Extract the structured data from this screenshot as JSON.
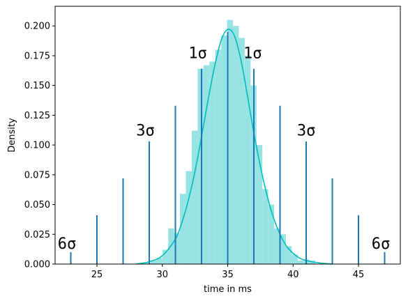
{
  "chart_data": {
    "type": "bar",
    "xlabel": "time in ms",
    "ylabel": "Density",
    "xlim": [
      21.8,
      48.2
    ],
    "ylim": [
      0,
      0.2165
    ],
    "x_ticks": [
      25,
      30,
      35,
      40,
      45
    ],
    "x_tick_labels": [
      "25",
      "30",
      "35",
      "40",
      "45"
    ],
    "y_ticks": [
      0.0,
      0.025,
      0.05,
      0.075,
      0.1,
      0.125,
      0.15,
      0.175,
      0.2
    ],
    "y_tick_labels": [
      "0.000",
      "0.025",
      "0.050",
      "0.075",
      "0.100",
      "0.125",
      "0.150",
      "0.175",
      "0.200"
    ],
    "histogram": {
      "color": "#97e3e3",
      "bin_edges": [
        28.65,
        29.1,
        29.55,
        30.0,
        30.45,
        30.9,
        31.35,
        31.8,
        32.25,
        32.7,
        33.15,
        33.6,
        34.05,
        34.5,
        34.95,
        35.4,
        35.85,
        36.3,
        36.75,
        37.2,
        37.65,
        38.1,
        38.55,
        39.0,
        39.45,
        39.9,
        40.35,
        40.8,
        41.25,
        41.7
      ],
      "densities": [
        0.001,
        0.003,
        0.005,
        0.012,
        0.03,
        0.026,
        0.059,
        0.078,
        0.112,
        0.164,
        0.167,
        0.17,
        0.18,
        0.192,
        0.205,
        0.2,
        0.19,
        0.175,
        0.15,
        0.1,
        0.063,
        0.05,
        0.03,
        0.025,
        0.015,
        0.008,
        0.003,
        0.004,
        0.003
      ]
    },
    "kde": {
      "color": "#00bcbc",
      "x": [
        28.0,
        29.0,
        30.0,
        31.0,
        31.5,
        32.0,
        32.5,
        33.0,
        33.5,
        34.0,
        34.5,
        35.0,
        35.5,
        36.0,
        36.5,
        37.0,
        37.5,
        38.0,
        38.5,
        39.0,
        39.5,
        40.0,
        40.5,
        41.0,
        42.0,
        43.0
      ],
      "y": [
        0.0,
        0.002,
        0.007,
        0.021,
        0.035,
        0.054,
        0.078,
        0.107,
        0.138,
        0.166,
        0.188,
        0.197,
        0.192,
        0.172,
        0.142,
        0.11,
        0.082,
        0.058,
        0.039,
        0.025,
        0.015,
        0.009,
        0.005,
        0.003,
        0.001,
        0.0
      ]
    },
    "sigma_lines": {
      "color": "#1f77b4",
      "x": [
        23,
        25,
        27,
        29,
        31,
        33,
        35,
        37,
        39,
        41,
        43,
        45,
        47
      ],
      "height": [
        0.01,
        0.041,
        0.072,
        0.103,
        0.133,
        0.164,
        0.195,
        0.164,
        0.133,
        0.103,
        0.072,
        0.041,
        0.01
      ]
    },
    "annotations": [
      {
        "text": "6σ",
        "x": 22.0,
        "y": 0.013
      },
      {
        "text": "3σ",
        "x": 28.0,
        "y": 0.108
      },
      {
        "text": "1σ",
        "x": 32.0,
        "y": 0.173
      },
      {
        "text": "1σ",
        "x": 36.2,
        "y": 0.173
      },
      {
        "text": "3σ",
        "x": 40.3,
        "y": 0.108
      },
      {
        "text": "6σ",
        "x": 46.0,
        "y": 0.013
      }
    ]
  }
}
